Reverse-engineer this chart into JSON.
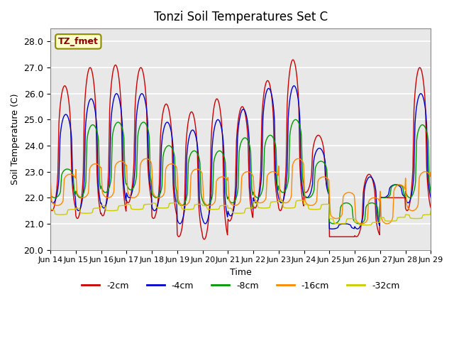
{
  "title": "Tonzi Soil Temperatures Set C",
  "xlabel": "Time",
  "ylabel": "Soil Temperature (C)",
  "ylim": [
    20.0,
    28.5
  ],
  "xlim": [
    0,
    360
  ],
  "annotation_text": "TZ_fmet",
  "background_color": "#e8e8e8",
  "series_colors": {
    "-2cm": "#cc0000",
    "-4cm": "#0000cc",
    "-8cm": "#009900",
    "-16cm": "#ff8800",
    "-32cm": "#cccc00"
  },
  "tick_labels": [
    "Jun 14",
    "Jun 15",
    "Jun 16",
    "Jun 17",
    "Jun 18",
    "Jun 19",
    "Jun 20",
    "Jun 21",
    "Jun 22",
    "Jun 23",
    "Jun 24",
    "Jun 25",
    "Jun 26",
    "Jun 27",
    "Jun 28",
    "Jun 29"
  ],
  "tick_positions": [
    0,
    24,
    48,
    72,
    96,
    120,
    144,
    168,
    192,
    216,
    240,
    264,
    288,
    312,
    336,
    360
  ],
  "yticks": [
    20.0,
    21.0,
    22.0,
    23.0,
    24.0,
    25.0,
    26.0,
    27.0,
    28.0
  ]
}
